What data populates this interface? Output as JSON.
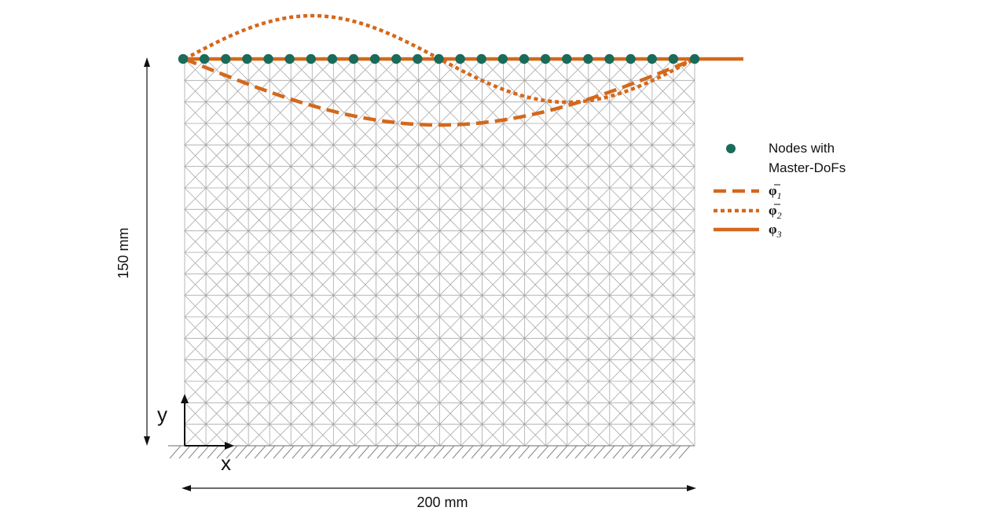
{
  "colors": {
    "mode": "#d4681c",
    "node": "#1a6b5a",
    "mesh": "#a9a9a9",
    "ink": "#111111"
  },
  "dimensions": {
    "height_label": "150 mm",
    "width_label": "200 mm"
  },
  "axes": {
    "x_label": "x",
    "y_label": "y"
  },
  "mesh": {
    "columns": 24,
    "rows": 18,
    "diagonals": "both"
  },
  "master_nodes": {
    "count": 25
  },
  "legend": {
    "nodes_line1": "Nodes with",
    "nodes_line2": "Master-DoFs",
    "phi1": {
      "symbol": "φ",
      "sub": "1",
      "style": "dashed"
    },
    "phi2": {
      "symbol": "φ",
      "sub": "2",
      "style": "dotted"
    },
    "phi3": {
      "symbol": "φ",
      "sub": "3",
      "style": "solid"
    }
  },
  "modes": [
    {
      "name": "phi1",
      "style": "dashed",
      "shape": "half-sine downward"
    },
    {
      "name": "phi2",
      "style": "dotted",
      "shape": "full sine"
    },
    {
      "name": "phi3",
      "style": "solid",
      "shape": "constant"
    }
  ]
}
